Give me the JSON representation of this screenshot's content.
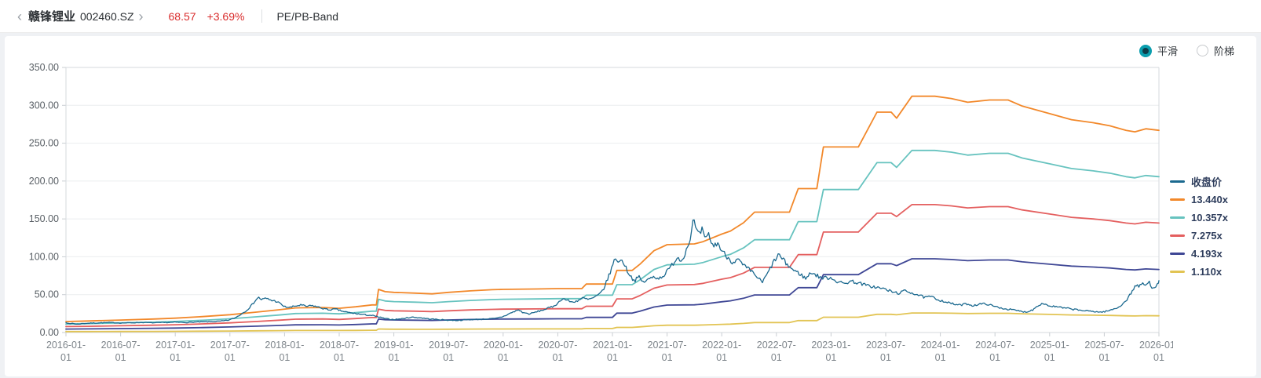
{
  "header": {
    "back_icon": "‹",
    "title": "赣锋锂业",
    "code": "002460.SZ",
    "forward_icon": "›",
    "price": "68.57",
    "change": "+3.69%",
    "view_title": "PE/PB-Band"
  },
  "controls": {
    "modes": [
      {
        "label": "平滑",
        "selected": true
      },
      {
        "label": "阶梯",
        "selected": false
      }
    ],
    "accent_color": "#0b9eae"
  },
  "chart_data": {
    "type": "line",
    "title": "PE/PB-Band",
    "legend_position": "right",
    "grid": true,
    "x_axis": {
      "range_years": [
        2016.0,
        2026.0
      ],
      "tick_dates": [
        "2016-01-01",
        "2016-07-01",
        "2017-01-01",
        "2017-07-01",
        "2018-01-01",
        "2018-07-01",
        "2019-01-01",
        "2019-07-01",
        "2020-01-01",
        "2020-07-01",
        "2021-01-01",
        "2021-07-01",
        "2022-01-01",
        "2022-07-01",
        "2023-01-01",
        "2023-07-01",
        "2024-01-01",
        "2024-07-01",
        "2025-01-01",
        "2025-07-01",
        "2026-01-01"
      ]
    },
    "y_axis": {
      "range": [
        0,
        350
      ],
      "tick_step": 50,
      "decimals": 2
    },
    "close_series": {
      "name": "收盘价",
      "color": "#1b698f",
      "noise_ratio": 0.035,
      "noise_seed": 7,
      "anchors": [
        [
          2016.0,
          13.5
        ],
        [
          2016.03,
          11.2
        ],
        [
          2016.06,
          12.3
        ],
        [
          2016.1,
          10.8
        ],
        [
          2016.15,
          11.8
        ],
        [
          2016.22,
          12.4
        ],
        [
          2016.3,
          12.8
        ],
        [
          2016.4,
          13.2
        ],
        [
          2016.5,
          12.6
        ],
        [
          2016.6,
          12.9
        ],
        [
          2016.7,
          13.3
        ],
        [
          2016.8,
          12.8
        ],
        [
          2016.9,
          13.1
        ],
        [
          2017.0,
          13.6
        ],
        [
          2017.1,
          13.2
        ],
        [
          2017.2,
          13.9
        ],
        [
          2017.3,
          14.2
        ],
        [
          2017.4,
          14.8
        ],
        [
          2017.48,
          16.0
        ],
        [
          2017.55,
          19.5
        ],
        [
          2017.6,
          24.0
        ],
        [
          2017.65,
          29.0
        ],
        [
          2017.7,
          36.0
        ],
        [
          2017.73,
          42.0
        ],
        [
          2017.76,
          46.5
        ],
        [
          2017.79,
          43.5
        ],
        [
          2017.83,
          45.0
        ],
        [
          2017.88,
          42.5
        ],
        [
          2017.93,
          41.0
        ],
        [
          2017.97,
          37.0
        ],
        [
          2018.0,
          34.0
        ],
        [
          2018.05,
          33.0
        ],
        [
          2018.1,
          35.0
        ],
        [
          2018.15,
          36.2
        ],
        [
          2018.2,
          34.5
        ],
        [
          2018.26,
          35.5
        ],
        [
          2018.32,
          33.0
        ],
        [
          2018.4,
          30.0
        ],
        [
          2018.47,
          30.8
        ],
        [
          2018.53,
          28.0
        ],
        [
          2018.6,
          26.0
        ],
        [
          2018.7,
          24.0
        ],
        [
          2018.8,
          22.5
        ],
        [
          2018.86,
          20.5
        ],
        [
          2018.93,
          18.0
        ],
        [
          2019.0,
          17.2
        ],
        [
          2019.08,
          18.3
        ],
        [
          2019.16,
          20.3
        ],
        [
          2019.24,
          19.5
        ],
        [
          2019.32,
          18.0
        ],
        [
          2019.4,
          17.2
        ],
        [
          2019.5,
          16.3
        ],
        [
          2019.58,
          16.0
        ],
        [
          2019.66,
          16.8
        ],
        [
          2019.75,
          17.3
        ],
        [
          2019.85,
          17.8
        ],
        [
          2019.93,
          18.5
        ],
        [
          2020.0,
          21.0
        ],
        [
          2020.05,
          24.5
        ],
        [
          2020.1,
          27.5
        ],
        [
          2020.14,
          30.0
        ],
        [
          2020.18,
          26.5
        ],
        [
          2020.24,
          24.5
        ],
        [
          2020.3,
          27.0
        ],
        [
          2020.38,
          30.5
        ],
        [
          2020.45,
          34.0
        ],
        [
          2020.5,
          38.5
        ],
        [
          2020.54,
          45.0
        ],
        [
          2020.58,
          43.0
        ],
        [
          2020.63,
          40.0
        ],
        [
          2020.68,
          42.0
        ],
        [
          2020.73,
          45.5
        ],
        [
          2020.78,
          43.5
        ],
        [
          2020.83,
          46.0
        ],
        [
          2020.88,
          50.0
        ],
        [
          2020.92,
          58.0
        ],
        [
          2020.96,
          72.0
        ],
        [
          2021.0,
          88.0
        ],
        [
          2021.03,
          99.5
        ],
        [
          2021.06,
          92.0
        ],
        [
          2021.09,
          97.0
        ],
        [
          2021.12,
          86.0
        ],
        [
          2021.16,
          76.0
        ],
        [
          2021.2,
          68.0
        ],
        [
          2021.24,
          73.5
        ],
        [
          2021.28,
          66.5
        ],
        [
          2021.33,
          70.0
        ],
        [
          2021.38,
          74.0
        ],
        [
          2021.43,
          71.5
        ],
        [
          2021.48,
          77.0
        ],
        [
          2021.53,
          86.0
        ],
        [
          2021.57,
          95.0
        ],
        [
          2021.6,
          100.0
        ],
        [
          2021.63,
          94.0
        ],
        [
          2021.66,
          104.0
        ],
        [
          2021.7,
          118.0
        ],
        [
          2021.72,
          132.0
        ],
        [
          2021.74,
          149.0
        ],
        [
          2021.76,
          139.0
        ],
        [
          2021.79,
          127.0
        ],
        [
          2021.82,
          136.0
        ],
        [
          2021.85,
          121.0
        ],
        [
          2021.88,
          130.0
        ],
        [
          2021.92,
          113.0
        ],
        [
          2021.96,
          119.0
        ],
        [
          2022.0,
          108.0
        ],
        [
          2022.05,
          100.0
        ],
        [
          2022.1,
          93.0
        ],
        [
          2022.15,
          96.0
        ],
        [
          2022.2,
          88.0
        ],
        [
          2022.26,
          82.0
        ],
        [
          2022.32,
          74.0
        ],
        [
          2022.37,
          66.0
        ],
        [
          2022.42,
          78.0
        ],
        [
          2022.47,
          92.0
        ],
        [
          2022.52,
          103.0
        ],
        [
          2022.56,
          96.0
        ],
        [
          2022.61,
          88.0
        ],
        [
          2022.66,
          82.0
        ],
        [
          2022.72,
          77.0
        ],
        [
          2022.77,
          71.0
        ],
        [
          2022.82,
          80.0
        ],
        [
          2022.87,
          75.0
        ],
        [
          2022.92,
          72.0
        ],
        [
          2023.0,
          72.5
        ],
        [
          2023.06,
          67.0
        ],
        [
          2023.12,
          64.5
        ],
        [
          2023.18,
          68.0
        ],
        [
          2023.25,
          65.5
        ],
        [
          2023.33,
          62.0
        ],
        [
          2023.42,
          59.5
        ],
        [
          2023.5,
          57.0
        ],
        [
          2023.56,
          53.5
        ],
        [
          2023.62,
          52.0
        ],
        [
          2023.68,
          55.0
        ],
        [
          2023.74,
          52.5
        ],
        [
          2023.8,
          49.5
        ],
        [
          2023.86,
          46.0
        ],
        [
          2023.91,
          47.5
        ],
        [
          2023.96,
          44.5
        ],
        [
          2024.0,
          42.5
        ],
        [
          2024.06,
          40.0
        ],
        [
          2024.12,
          37.5
        ],
        [
          2024.18,
          36.0
        ],
        [
          2024.24,
          38.0
        ],
        [
          2024.3,
          35.5
        ],
        [
          2024.36,
          37.5
        ],
        [
          2024.42,
          38.0
        ],
        [
          2024.48,
          35.0
        ],
        [
          2024.54,
          33.0
        ],
        [
          2024.6,
          31.0
        ],
        [
          2024.66,
          30.0
        ],
        [
          2024.72,
          28.5
        ],
        [
          2024.78,
          27.0
        ],
        [
          2024.84,
          29.5
        ],
        [
          2024.9,
          36.5
        ],
        [
          2024.94,
          38.5
        ],
        [
          2025.0,
          35.0
        ],
        [
          2025.06,
          34.0
        ],
        [
          2025.12,
          32.5
        ],
        [
          2025.18,
          31.5
        ],
        [
          2025.25,
          30.0
        ],
        [
          2025.33,
          28.5
        ],
        [
          2025.4,
          28.0
        ],
        [
          2025.46,
          26.8
        ],
        [
          2025.52,
          28.0
        ],
        [
          2025.58,
          30.5
        ],
        [
          2025.63,
          33.5
        ],
        [
          2025.68,
          39.0
        ],
        [
          2025.72,
          46.0
        ],
        [
          2025.76,
          56.0
        ],
        [
          2025.79,
          63.0
        ],
        [
          2025.82,
          60.0
        ],
        [
          2025.85,
          65.5
        ],
        [
          2025.88,
          62.0
        ],
        [
          2025.91,
          66.5
        ],
        [
          2025.94,
          59.0
        ],
        [
          2025.97,
          61.5
        ],
        [
          2026.0,
          68.5
        ]
      ]
    },
    "pb_band": {
      "note": "band value = base_anchor_value * ratio; base anchors correspond to the 13.440x line",
      "base_anchors": [
        [
          2016.0,
          14.5
        ],
        [
          2016.2,
          15.2
        ],
        [
          2016.5,
          16.5
        ],
        [
          2016.8,
          17.8
        ],
        [
          2017.0,
          19.0
        ],
        [
          2017.25,
          21.0
        ],
        [
          2017.5,
          23.5
        ],
        [
          2017.75,
          27.0
        ],
        [
          2017.95,
          30.0
        ],
        [
          2018.1,
          32.5
        ],
        [
          2018.35,
          33.0
        ],
        [
          2018.5,
          32.0
        ],
        [
          2018.65,
          34.0
        ],
        [
          2018.8,
          36.5
        ],
        [
          2018.84,
          36.5
        ],
        [
          2018.86,
          57.0
        ],
        [
          2018.92,
          54.0
        ],
        [
          2019.0,
          53.0
        ],
        [
          2019.2,
          52.0
        ],
        [
          2019.35,
          51.0
        ],
        [
          2019.5,
          53.0
        ],
        [
          2019.7,
          55.0
        ],
        [
          2019.9,
          56.5
        ],
        [
          2020.0,
          57.0
        ],
        [
          2020.3,
          57.5
        ],
        [
          2020.5,
          58.0
        ],
        [
          2020.72,
          58.0
        ],
        [
          2020.76,
          64.0
        ],
        [
          2021.0,
          64.0
        ],
        [
          2021.04,
          82.0
        ],
        [
          2021.18,
          82.0
        ],
        [
          2021.25,
          90.0
        ],
        [
          2021.38,
          108.0
        ],
        [
          2021.5,
          116.0
        ],
        [
          2021.75,
          117.0
        ],
        [
          2021.83,
          120.0
        ],
        [
          2022.0,
          130.0
        ],
        [
          2022.08,
          134.0
        ],
        [
          2022.2,
          145.0
        ],
        [
          2022.3,
          159.0
        ],
        [
          2022.62,
          159.0
        ],
        [
          2022.7,
          190.0
        ],
        [
          2022.87,
          190.0
        ],
        [
          2022.93,
          245.0
        ],
        [
          2023.25,
          245.0
        ],
        [
          2023.42,
          291.0
        ],
        [
          2023.55,
          291.0
        ],
        [
          2023.6,
          283.0
        ],
        [
          2023.74,
          312.0
        ],
        [
          2023.95,
          312.0
        ],
        [
          2024.1,
          309.0
        ],
        [
          2024.25,
          304.0
        ],
        [
          2024.45,
          307.0
        ],
        [
          2024.62,
          307.0
        ],
        [
          2024.75,
          299.0
        ],
        [
          2025.0,
          289.0
        ],
        [
          2025.2,
          281.0
        ],
        [
          2025.4,
          277.0
        ],
        [
          2025.55,
          273.0
        ],
        [
          2025.7,
          267.0
        ],
        [
          2025.78,
          265.0
        ],
        [
          2025.88,
          269.0
        ],
        [
          2026.0,
          267.0
        ]
      ],
      "bands": [
        {
          "name": "13.440x",
          "color": "#f2882a",
          "ratio": 1.0
        },
        {
          "name": "10.357x",
          "color": "#67c3bf",
          "ratio": 0.7706
        },
        {
          "name": "7.275x",
          "color": "#e45f5f",
          "ratio": 0.5413
        },
        {
          "name": "4.193x",
          "color": "#3f4795",
          "ratio": 0.312
        },
        {
          "name": "1.110x",
          "color": "#e2c453",
          "ratio": 0.0826
        }
      ]
    }
  }
}
